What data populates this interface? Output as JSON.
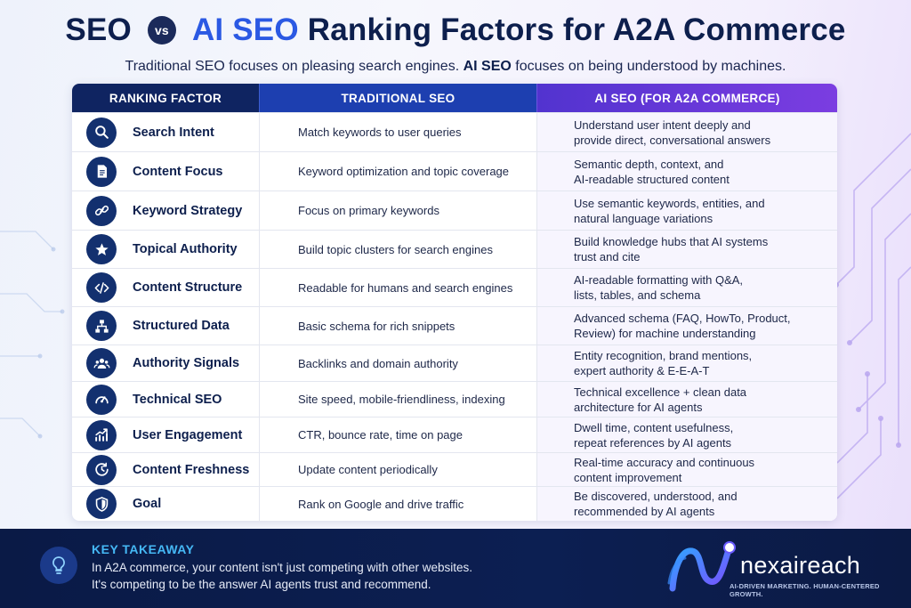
{
  "title": {
    "seo": "SEO",
    "vs": "vs",
    "ai_seo": "AI SEO",
    "rest": "Ranking Factors for A2A Commerce"
  },
  "subtitle": {
    "part1": "Traditional SEO focuses on pleasing search engines. ",
    "bold": "AI SEO",
    "part2": " focuses on being understood by machines."
  },
  "table": {
    "headers": [
      "RANKING FACTOR",
      "TRADITIONAL SEO",
      "AI SEO (FOR A2A COMMERCE)"
    ],
    "rows": [
      {
        "icon": "search-icon",
        "factor": "Search Intent",
        "traditional": "Match keywords to user queries",
        "ai_line1": "Understand user intent deeply and",
        "ai_line2": "provide direct, conversational answers"
      },
      {
        "icon": "document-icon",
        "factor": "Content Focus",
        "traditional": "Keyword optimization and topic coverage",
        "ai_line1": "Semantic depth, context, and",
        "ai_line2": "AI-readable structured content"
      },
      {
        "icon": "link-icon",
        "factor": "Keyword Strategy",
        "traditional": "Focus on primary keywords",
        "ai_line1": "Use semantic keywords, entities, and",
        "ai_line2": "natural language variations"
      },
      {
        "icon": "star-icon",
        "factor": "Topical Authority",
        "traditional": "Build topic clusters for search engines",
        "ai_line1": "Build knowledge hubs that AI systems",
        "ai_line2": "trust and cite"
      },
      {
        "icon": "code-icon",
        "factor": "Content Structure",
        "traditional": "Readable for humans and search engines",
        "ai_line1": "AI-readable formatting with Q&A,",
        "ai_line2": "lists, tables, and schema"
      },
      {
        "icon": "sitemap-icon",
        "factor": "Structured Data",
        "traditional": "Basic schema for rich snippets",
        "ai_line1": "Advanced schema (FAQ, HowTo, Product,",
        "ai_line2": "Review) for machine understanding"
      },
      {
        "icon": "users-icon",
        "factor": "Authority Signals",
        "traditional": "Backlinks and domain authority",
        "ai_line1": "Entity recognition, brand mentions,",
        "ai_line2": "expert authority & E-E-A-T"
      },
      {
        "icon": "speedometer-icon",
        "factor": "Technical SEO",
        "traditional": "Site speed, mobile-friendliness, indexing",
        "ai_line1": "Technical excellence + clean data",
        "ai_line2": "architecture for AI agents"
      },
      {
        "icon": "trend-chart-icon",
        "factor": "User Engagement",
        "traditional": "CTR, bounce rate, time on page",
        "ai_line1": "Dwell time, content usefulness,",
        "ai_line2": "repeat references by AI agents"
      },
      {
        "icon": "clock-refresh-icon",
        "factor": "Content Freshness",
        "traditional": "Update content periodically",
        "ai_line1": "Real-time accuracy and continuous",
        "ai_line2": "content improvement"
      },
      {
        "icon": "shield-icon",
        "factor": "Goal",
        "traditional": "Rank on Google and drive traffic",
        "ai_line1": "Be discovered, understood, and",
        "ai_line2": "recommended by AI agents"
      }
    ]
  },
  "takeaway": {
    "icon": "lightbulb-icon",
    "title": "KEY TAKEAWAY",
    "line1": "In A2A commerce, your content isn't just competing with other websites.",
    "line2": "It's competing to be the answer AI agents trust and recommend."
  },
  "brand": {
    "name": "nexaireach",
    "tagline": "AI-DRIVEN MARKETING. HUMAN-CENTERED GROWTH."
  },
  "colors": {
    "navy": "#0f2461",
    "blue": "#1d3fb0",
    "accent": "#2b59e3",
    "purple": "#6a3ad9",
    "takeaway_accent": "#45b8f5"
  }
}
